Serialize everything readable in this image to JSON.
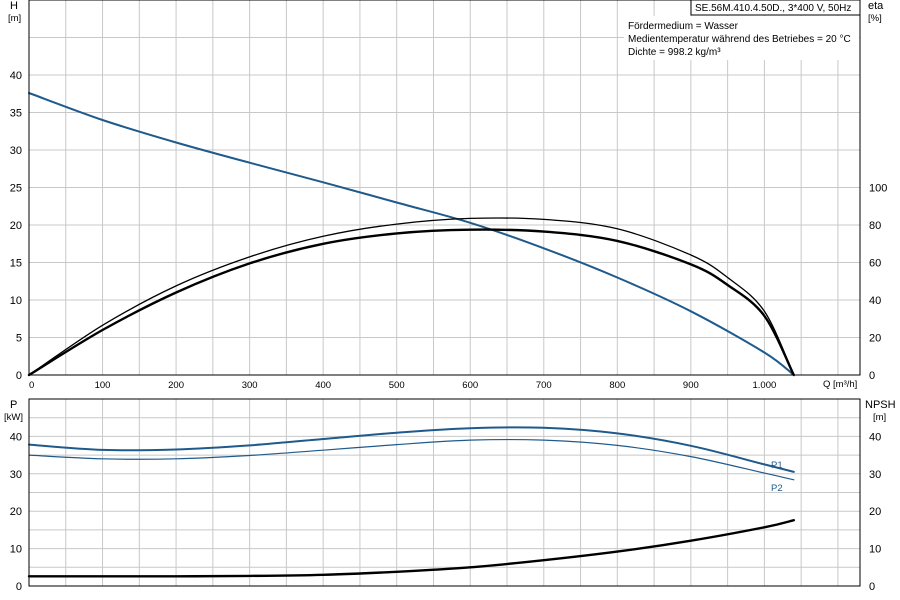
{
  "model_label": "SE.56M.410.4.50D., 3*400 V, 50Hz",
  "info_lines": [
    "Fördermedium = Wasser",
    "Medientemperatur während des Betriebes = 20 °C",
    "Dichte = 998.2 kg/m³"
  ],
  "colors": {
    "blue": "#1f5a8c",
    "black": "#000000",
    "grid": "#c8c8c8"
  },
  "chart_data": [
    {
      "id": "head-efficiency",
      "type": "line",
      "x_axis": {
        "label": "Q [m³/h]",
        "range": [
          0,
          1130
        ],
        "ticks": [
          0,
          100,
          200,
          300,
          400,
          500,
          600,
          700,
          800,
          900,
          1000
        ],
        "tick_labels": [
          "0",
          "100",
          "200",
          "300",
          "400",
          "500",
          "600",
          "700",
          "800",
          "900",
          "1.000"
        ]
      },
      "y_left": {
        "label_top": "H",
        "label_unit": "[m]",
        "range": [
          0,
          50
        ],
        "ticks": [
          0,
          5,
          10,
          15,
          20,
          25,
          30,
          35,
          40
        ]
      },
      "y_right": {
        "label_top": "eta",
        "label_unit": "[%]",
        "range": [
          0,
          200
        ],
        "ticks": [
          0,
          20,
          40,
          60,
          80,
          100
        ]
      },
      "grid": true,
      "series": [
        {
          "axis": "left",
          "color": "#1f5a8c",
          "width": 2,
          "x": [
            0,
            100,
            200,
            300,
            400,
            500,
            600,
            700,
            800,
            900,
            1000,
            1040
          ],
          "y": [
            37.6,
            34.0,
            31.0,
            28.3,
            25.7,
            23.0,
            20.3,
            16.9,
            13.0,
            8.5,
            3.0,
            0
          ]
        },
        {
          "axis": "right",
          "color": "#000000",
          "width": 1.3,
          "x": [
            0,
            100,
            200,
            300,
            400,
            500,
            600,
            700,
            800,
            900,
            950,
            1000,
            1040
          ],
          "y": [
            0,
            26.5,
            47.5,
            63,
            74,
            80.5,
            83.5,
            83,
            78,
            64,
            52,
            34,
            0
          ]
        },
        {
          "axis": "right",
          "color": "#000000",
          "width": 2.4,
          "x": [
            0,
            100,
            200,
            300,
            400,
            500,
            600,
            700,
            800,
            900,
            950,
            1000,
            1040
          ],
          "y": [
            0,
            24,
            44,
            59.5,
            70,
            75.5,
            77.5,
            76.5,
            71.5,
            59,
            48,
            31.5,
            0
          ]
        }
      ]
    },
    {
      "id": "power-npsh",
      "type": "line",
      "x_axis": {
        "range": [
          0,
          1130
        ],
        "ticks": [
          0,
          100,
          200,
          300,
          400,
          500,
          600,
          700,
          800,
          900,
          1000
        ]
      },
      "y_left": {
        "label_top": "P",
        "label_unit": "[kW]",
        "range": [
          0,
          50
        ],
        "ticks": [
          0,
          10,
          20,
          30,
          40
        ]
      },
      "y_right": {
        "label_top": "NPSH",
        "label_unit": "[m]",
        "range": [
          0,
          50
        ],
        "ticks": [
          0,
          10,
          20,
          30,
          40
        ]
      },
      "grid": true,
      "series": [
        {
          "name": "P1",
          "axis": "left",
          "color": "#1f5a8c",
          "width": 2,
          "x": [
            0,
            100,
            200,
            300,
            400,
            500,
            600,
            700,
            800,
            900,
            1000,
            1040
          ],
          "y": [
            37.8,
            36.4,
            36.5,
            37.6,
            39.3,
            41.0,
            42.2,
            42.3,
            40.8,
            37.5,
            32.5,
            30.5
          ]
        },
        {
          "name": "P2",
          "axis": "left",
          "color": "#1f5a8c",
          "width": 1.2,
          "x": [
            0,
            100,
            200,
            300,
            400,
            500,
            600,
            700,
            800,
            900,
            1000,
            1040
          ],
          "y": [
            35.0,
            34.0,
            34.0,
            34.9,
            36.3,
            37.8,
            39.0,
            39.0,
            37.6,
            34.6,
            30.2,
            28.4
          ]
        },
        {
          "axis": "right",
          "color": "#000000",
          "width": 2.4,
          "x": [
            0,
            100,
            200,
            300,
            400,
            500,
            600,
            700,
            800,
            900,
            1000,
            1040
          ],
          "y": [
            2.6,
            2.6,
            2.6,
            2.7,
            3.0,
            3.8,
            5.0,
            6.9,
            9.2,
            12.1,
            15.7,
            17.6
          ]
        }
      ]
    }
  ]
}
